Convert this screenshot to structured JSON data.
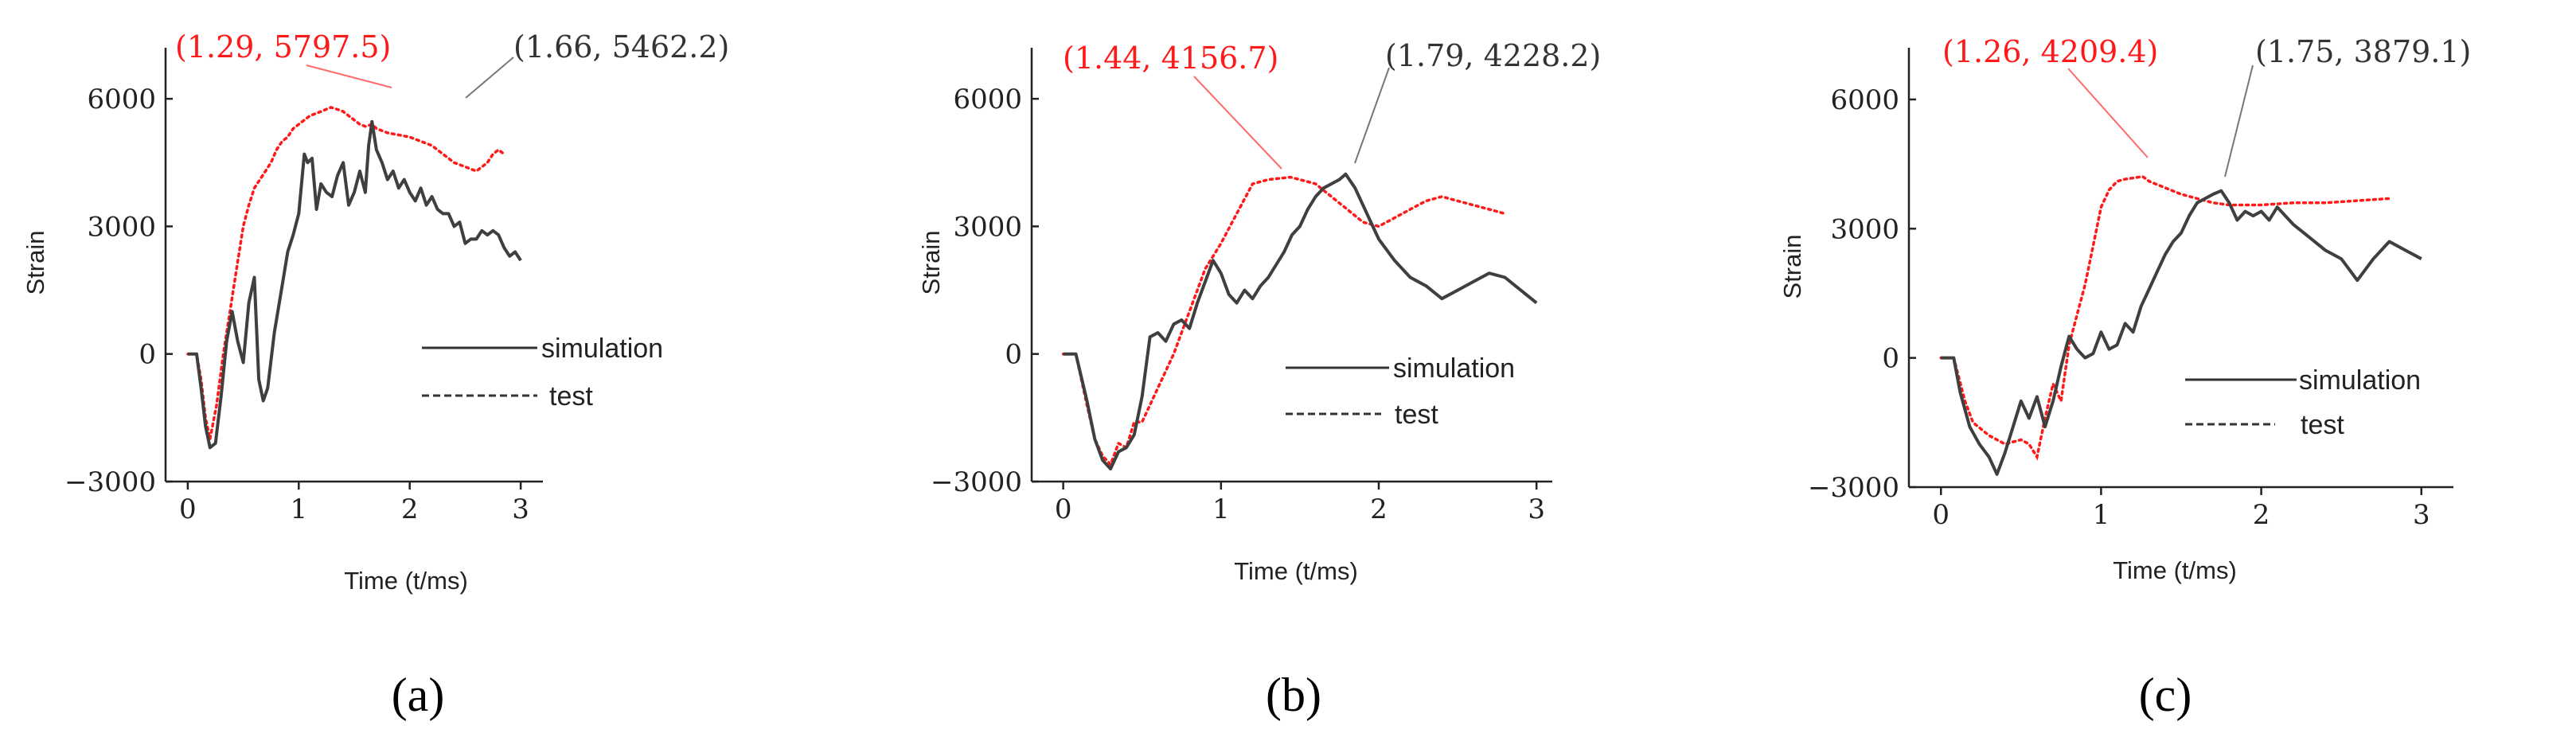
{
  "chart_data": [
    {
      "type": "line",
      "panel_label": "(a)",
      "xlabel": "Time (t/ms)",
      "ylabel": "Strain",
      "xlim": [
        -0.2,
        3.2
      ],
      "ylim": [
        -3000,
        7200
      ],
      "xticks": [
        0,
        1,
        2,
        3
      ],
      "xtick_labels": [
        "0",
        "1",
        "2",
        "3"
      ],
      "yticks": [
        -3000,
        0,
        3000,
        6000
      ],
      "ytick_labels": [
        "−3000",
        "0",
        "3000",
        "6000"
      ],
      "legend": {
        "position": "center-right",
        "entries": [
          "simulation",
          "test"
        ]
      },
      "series": [
        {
          "name": "simulation",
          "x": [
            0,
            0.08,
            0.12,
            0.16,
            0.2,
            0.25,
            0.3,
            0.35,
            0.4,
            0.45,
            0.5,
            0.55,
            0.6,
            0.64,
            0.68,
            0.72,
            0.78,
            0.85,
            0.9,
            0.95,
            1.0,
            1.05,
            1.08,
            1.12,
            1.16,
            1.2,
            1.25,
            1.3,
            1.35,
            1.4,
            1.45,
            1.5,
            1.55,
            1.6,
            1.63,
            1.66,
            1.7,
            1.75,
            1.8,
            1.85,
            1.9,
            1.95,
            2.0,
            2.05,
            2.1,
            2.15,
            2.2,
            2.25,
            2.3,
            2.35,
            2.4,
            2.45,
            2.5,
            2.55,
            2.6,
            2.65,
            2.7,
            2.75,
            2.8,
            2.85,
            2.9,
            2.95,
            3.0
          ],
          "y": [
            0,
            0,
            -800,
            -1700,
            -2200,
            -2100,
            -1000,
            300,
            1000,
            300,
            -200,
            1200,
            1800,
            -600,
            -1100,
            -800,
            500,
            1600,
            2400,
            2800,
            3300,
            4700,
            4500,
            4600,
            3400,
            4000,
            3800,
            3700,
            4200,
            4500,
            3500,
            3800,
            4300,
            3800,
            4900,
            5462.2,
            4800,
            4500,
            4100,
            4300,
            3900,
            4100,
            3800,
            3600,
            3900,
            3500,
            3700,
            3400,
            3300,
            3300,
            3000,
            3100,
            2600,
            2700,
            2700,
            2900,
            2800,
            2900,
            2800,
            2500,
            2300,
            2400,
            2200
          ]
        },
        {
          "name": "test",
          "x": [
            0,
            0.08,
            0.12,
            0.16,
            0.2,
            0.26,
            0.32,
            0.38,
            0.44,
            0.5,
            0.55,
            0.6,
            0.65,
            0.7,
            0.75,
            0.8,
            0.85,
            0.9,
            0.95,
            1.0,
            1.05,
            1.1,
            1.15,
            1.2,
            1.29,
            1.35,
            1.4,
            1.45,
            1.5,
            1.55,
            1.6,
            1.66,
            1.7,
            1.8,
            1.9,
            2.0,
            2.1,
            2.2,
            2.3,
            2.4,
            2.5,
            2.6,
            2.7,
            2.75,
            2.8,
            2.85
          ],
          "y": [
            0,
            0,
            -600,
            -1500,
            -2000,
            -1200,
            0,
            1000,
            2000,
            3000,
            3500,
            3900,
            4100,
            4300,
            4500,
            4800,
            5000,
            5100,
            5300,
            5400,
            5500,
            5600,
            5650,
            5700,
            5797.5,
            5750,
            5700,
            5600,
            5500,
            5400,
            5350,
            5400,
            5300,
            5200,
            5150,
            5100,
            5000,
            4900,
            4700,
            4500,
            4400,
            4300,
            4500,
            4700,
            4800,
            4700
          ]
        }
      ],
      "annotations": [
        {
          "text": "(1.29,  5797.5)",
          "x": 1.29,
          "y": 5797.5,
          "color": "#ff1a1a"
        },
        {
          "text": "(1.66,  5462.2)",
          "x": 1.66,
          "y": 5462.2,
          "color": "#333333"
        }
      ]
    },
    {
      "type": "line",
      "panel_label": "(b)",
      "xlabel": "Time (t/ms)",
      "ylabel": "Strain",
      "xlim": [
        -0.2,
        3.1
      ],
      "ylim": [
        -3000,
        7200
      ],
      "xticks": [
        0,
        1,
        2,
        3
      ],
      "xtick_labels": [
        "0",
        "1",
        "2",
        "3"
      ],
      "yticks": [
        -3000,
        0,
        3000,
        6000
      ],
      "ytick_labels": [
        "−3000",
        "0",
        "3000",
        "6000"
      ],
      "legend": {
        "position": "center-right",
        "entries": [
          "simulation",
          "test"
        ]
      },
      "series": [
        {
          "name": "simulation",
          "x": [
            0,
            0.08,
            0.15,
            0.2,
            0.25,
            0.3,
            0.35,
            0.4,
            0.45,
            0.5,
            0.55,
            0.6,
            0.65,
            0.7,
            0.75,
            0.8,
            0.85,
            0.9,
            0.95,
            1.0,
            1.05,
            1.1,
            1.15,
            1.2,
            1.25,
            1.3,
            1.35,
            1.4,
            1.45,
            1.5,
            1.55,
            1.6,
            1.65,
            1.7,
            1.75,
            1.79,
            1.85,
            1.9,
            1.95,
            2.0,
            2.1,
            2.2,
            2.3,
            2.4,
            2.5,
            2.6,
            2.7,
            2.8,
            2.9,
            3.0
          ],
          "y": [
            0,
            0,
            -1100,
            -2000,
            -2500,
            -2700,
            -2300,
            -2200,
            -1900,
            -1000,
            400,
            500,
            300,
            700,
            800,
            600,
            1200,
            1700,
            2200,
            1900,
            1400,
            1200,
            1500,
            1300,
            1600,
            1800,
            2100,
            2400,
            2800,
            3000,
            3400,
            3700,
            3900,
            4000,
            4100,
            4228.2,
            3900,
            3500,
            3100,
            2700,
            2200,
            1800,
            1600,
            1300,
            1500,
            1700,
            1900,
            1800,
            1500,
            1200
          ]
        },
        {
          "name": "test",
          "x": [
            0,
            0.08,
            0.15,
            0.2,
            0.25,
            0.3,
            0.35,
            0.4,
            0.45,
            0.5,
            0.6,
            0.7,
            0.8,
            0.9,
            1.0,
            1.1,
            1.2,
            1.3,
            1.44,
            1.5,
            1.6,
            1.7,
            1.8,
            1.9,
            2.0,
            2.1,
            2.2,
            2.3,
            2.4,
            2.5,
            2.6,
            2.7,
            2.8
          ],
          "y": [
            0,
            0,
            -1200,
            -2000,
            -2400,
            -2600,
            -2100,
            -2200,
            -1600,
            -1600,
            -800,
            0,
            1000,
            2000,
            2600,
            3300,
            4000,
            4100,
            4156.7,
            4100,
            4000,
            3700,
            3400,
            3100,
            3000,
            3200,
            3400,
            3600,
            3700,
            3600,
            3500,
            3400,
            3300
          ]
        }
      ],
      "annotations": [
        {
          "text": "(1.44,  4156.7)",
          "x": 1.44,
          "y": 4156.7,
          "color": "#ff1a1a"
        },
        {
          "text": "(1.79,  4228.2)",
          "x": 1.79,
          "y": 4228.2,
          "color": "#333333"
        }
      ]
    },
    {
      "type": "line",
      "panel_label": "(c)",
      "xlabel": "Time (t/ms)",
      "ylabel": "Strain",
      "xlim": [
        -0.2,
        3.2
      ],
      "ylim": [
        -3000,
        7200
      ],
      "xticks": [
        0,
        1,
        2,
        3
      ],
      "xtick_labels": [
        "0",
        "1",
        "2",
        "3"
      ],
      "yticks": [
        -3000,
        0,
        3000,
        6000
      ],
      "ytick_labels": [
        "−3000",
        "0",
        "3000",
        "6000"
      ],
      "legend": {
        "position": "center-right",
        "entries": [
          "simulation",
          "test"
        ]
      },
      "series": [
        {
          "name": "simulation",
          "x": [
            0,
            0.08,
            0.12,
            0.18,
            0.24,
            0.3,
            0.35,
            0.4,
            0.45,
            0.5,
            0.55,
            0.6,
            0.65,
            0.7,
            0.75,
            0.8,
            0.85,
            0.9,
            0.95,
            1.0,
            1.05,
            1.1,
            1.15,
            1.2,
            1.25,
            1.3,
            1.35,
            1.4,
            1.45,
            1.5,
            1.55,
            1.6,
            1.65,
            1.7,
            1.75,
            1.8,
            1.85,
            1.9,
            1.95,
            2.0,
            2.05,
            2.1,
            2.15,
            2.2,
            2.3,
            2.4,
            2.5,
            2.6,
            2.7,
            2.8,
            2.9,
            3.0
          ],
          "y": [
            0,
            0,
            -800,
            -1600,
            -2000,
            -2300,
            -2700,
            -2200,
            -1600,
            -1000,
            -1400,
            -900,
            -1600,
            -1000,
            -200,
            500,
            200,
            0,
            100,
            600,
            200,
            300,
            800,
            600,
            1200,
            1600,
            2000,
            2400,
            2700,
            2900,
            3300,
            3600,
            3700,
            3800,
            3879.1,
            3600,
            3200,
            3400,
            3300,
            3400,
            3200,
            3500,
            3300,
            3100,
            2800,
            2500,
            2300,
            1800,
            2300,
            2700,
            2500,
            2300
          ]
        },
        {
          "name": "test",
          "x": [
            0,
            0.08,
            0.15,
            0.2,
            0.3,
            0.4,
            0.5,
            0.55,
            0.6,
            0.65,
            0.7,
            0.75,
            0.8,
            0.85,
            0.9,
            0.95,
            1.0,
            1.05,
            1.1,
            1.15,
            1.26,
            1.3,
            1.4,
            1.5,
            1.6,
            1.7,
            1.8,
            1.9,
            2.0,
            2.2,
            2.4,
            2.6,
            2.8
          ],
          "y": [
            0,
            0,
            -1000,
            -1500,
            -1800,
            -2000,
            -1900,
            -2000,
            -2300,
            -1400,
            -600,
            -1000,
            300,
            1000,
            1700,
            2600,
            3500,
            3900,
            4100,
            4150,
            4209.4,
            4100,
            3950,
            3800,
            3700,
            3600,
            3550,
            3550,
            3550,
            3600,
            3600,
            3650,
            3700
          ]
        }
      ],
      "annotations": [
        {
          "text": "(1.26,  4209.4)",
          "x": 1.26,
          "y": 4209.4,
          "color": "#ff1a1a"
        },
        {
          "text": "(1.75,  3879.1)",
          "x": 1.75,
          "y": 3879.1,
          "color": "#333333"
        }
      ]
    }
  ]
}
